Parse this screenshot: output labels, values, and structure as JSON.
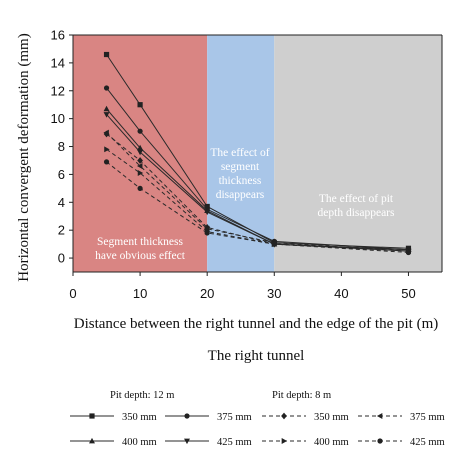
{
  "chart_data": {
    "type": "line",
    "title": "",
    "xlabel": "Distance between the right tunnel and the edge of the pit (m)",
    "ylabel": "Horizontal convergent deformation (mm)",
    "xlim": [
      0,
      55
    ],
    "ylim": [
      -1,
      16
    ],
    "x_ticks": [
      0,
      10,
      20,
      30,
      40,
      50
    ],
    "y_ticks": [
      0,
      2,
      4,
      6,
      8,
      10,
      12,
      14,
      16
    ],
    "grid": false,
    "x": [
      5,
      10,
      20,
      30,
      50
    ],
    "regions": [
      {
        "from": 0,
        "to": 20,
        "label": [
          "Segment thickness",
          "have obvious effect"
        ],
        "color": "#d98583"
      },
      {
        "from": 20,
        "to": 30,
        "label": [
          "The effect of",
          "segment",
          "thickness",
          "disappears"
        ],
        "color": "#a9c6e8"
      },
      {
        "from": 30,
        "to": 55,
        "label": [
          "The effect of pit",
          "depth disappears"
        ],
        "color": "#cfcfcf"
      }
    ],
    "caption": "The right tunnel",
    "legend": {
      "placement": "bottom",
      "groups": [
        {
          "title": "Pit depth: 12 m",
          "line_style": "solid"
        },
        {
          "title": "Pit depth: 8 m",
          "line_style": "dashed"
        }
      ]
    },
    "series": [
      {
        "name": "350 mm",
        "group": "Pit depth: 12 m",
        "marker": "square",
        "dashed": false,
        "values": [
          14.6,
          11.0,
          3.7,
          1.1,
          0.7
        ]
      },
      {
        "name": "375 mm",
        "group": "Pit depth: 12 m",
        "marker": "circle",
        "dashed": false,
        "values": [
          12.2,
          9.1,
          3.5,
          1.2,
          0.6
        ]
      },
      {
        "name": "400 mm",
        "group": "Pit depth: 12 m",
        "marker": "triangle-up",
        "dashed": false,
        "values": [
          10.7,
          7.9,
          3.4,
          1.0,
          0.6
        ]
      },
      {
        "name": "425 mm",
        "group": "Pit depth: 12 m",
        "marker": "triangle-down",
        "dashed": false,
        "values": [
          10.3,
          7.6,
          3.3,
          1.0,
          0.5
        ]
      },
      {
        "name": "350 mm",
        "group": "Pit depth: 8 m",
        "marker": "diamond",
        "dashed": true,
        "values": [
          8.9,
          7.0,
          2.2,
          1.0,
          0.6
        ]
      },
      {
        "name": "375 mm",
        "group": "Pit depth: 8 m",
        "marker": "triangle-left",
        "dashed": true,
        "values": [
          9.0,
          6.6,
          2.1,
          1.1,
          0.5
        ]
      },
      {
        "name": "400 mm",
        "group": "Pit depth: 8 m",
        "marker": "triangle-right",
        "dashed": true,
        "values": [
          7.8,
          6.1,
          1.9,
          1.0,
          0.5
        ]
      },
      {
        "name": "425 mm",
        "group": "Pit depth: 8 m",
        "marker": "circle",
        "dashed": true,
        "values": [
          6.9,
          5.0,
          1.8,
          1.0,
          0.4
        ]
      }
    ]
  }
}
